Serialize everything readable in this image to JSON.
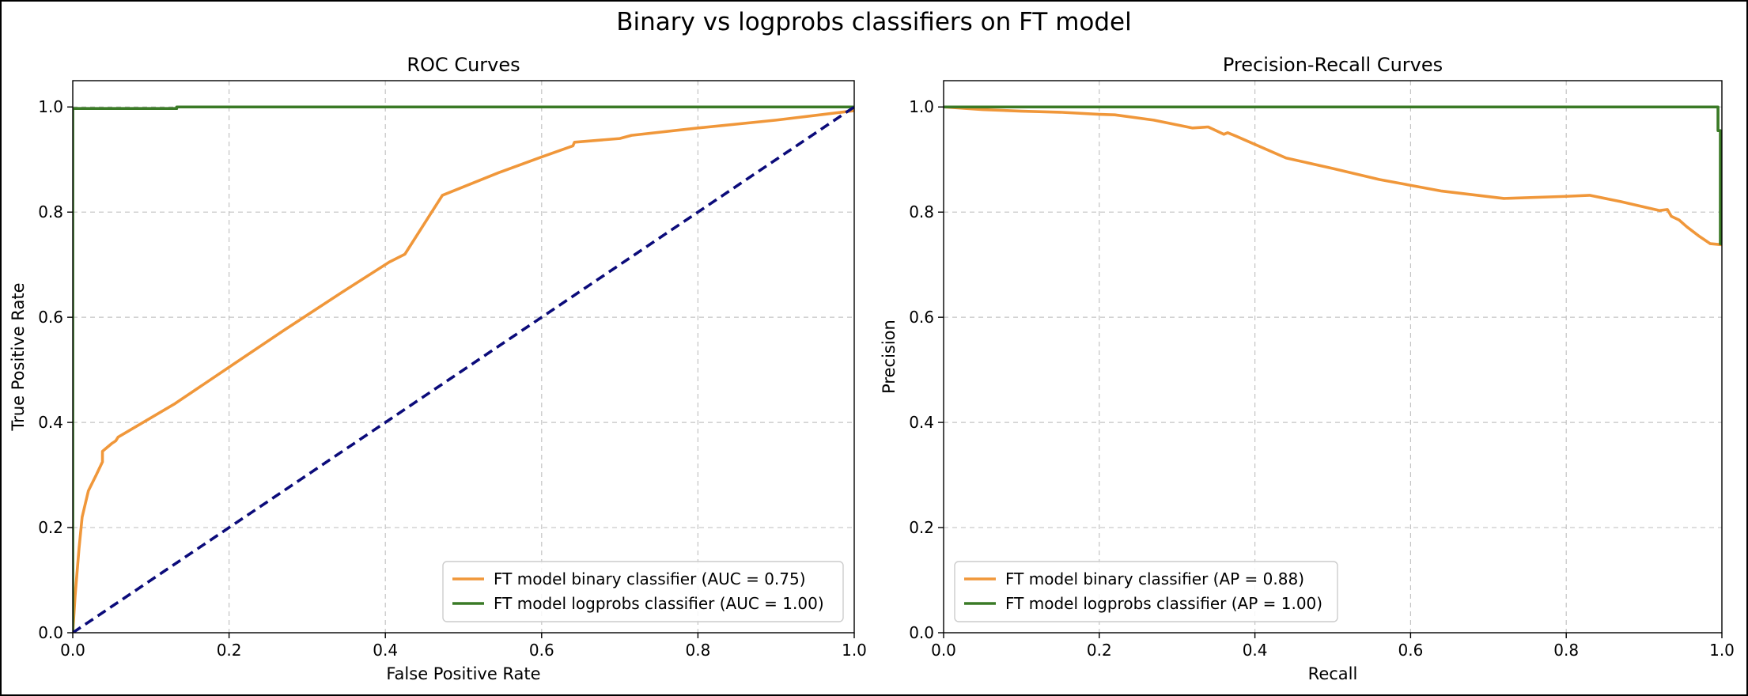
{
  "figure": {
    "title": "Binary vs logprobs classifiers on FT model"
  },
  "chart_data": [
    {
      "type": "line",
      "title": "ROC Curves",
      "xlabel": "False Positive Rate",
      "ylabel": "True Positive Rate",
      "xlim": [
        0.0,
        1.0
      ],
      "ylim": [
        0.0,
        1.05
      ],
      "xticks": [
        "0.0",
        "0.2",
        "0.4",
        "0.6",
        "0.8",
        "1.0"
      ],
      "yticks": [
        "0.0",
        "0.2",
        "0.4",
        "0.6",
        "0.8",
        "1.0"
      ],
      "grid": true,
      "legend_position": "lower-right",
      "series": [
        {
          "name": "FT model binary classifier (AUC = 0.75)",
          "color": "#f0973a",
          "style": "solid",
          "x": [
            0.0,
            0.003,
            0.008,
            0.012,
            0.02,
            0.03,
            0.038,
            0.038,
            0.05,
            0.055,
            0.058,
            0.13,
            0.2,
            0.27,
            0.345,
            0.405,
            0.425,
            0.473,
            0.545,
            0.6,
            0.64,
            0.642,
            0.7,
            0.715,
            0.8,
            0.9,
            1.0
          ],
          "y": [
            0.0,
            0.07,
            0.16,
            0.22,
            0.27,
            0.3,
            0.325,
            0.345,
            0.36,
            0.365,
            0.372,
            0.435,
            0.505,
            0.575,
            0.648,
            0.705,
            0.72,
            0.832,
            0.875,
            0.905,
            0.926,
            0.933,
            0.94,
            0.946,
            0.96,
            0.975,
            0.993
          ]
        },
        {
          "name": "FT model logprobs classifier (AUC = 1.00)",
          "color": "#3a7a26",
          "style": "solid",
          "x": [
            0.0,
            0.0,
            0.133,
            0.133,
            1.0
          ],
          "y": [
            0.0,
            0.997,
            0.997,
            1.0,
            1.0
          ]
        },
        {
          "color": "#0b0b7a",
          "style": "dashed",
          "x": [
            0.0,
            1.0
          ],
          "y": [
            0.0,
            1.0
          ]
        }
      ]
    },
    {
      "type": "line",
      "title": "Precision-Recall Curves",
      "xlabel": "Recall",
      "ylabel": "Precision",
      "xlim": [
        0.0,
        1.0
      ],
      "ylim": [
        0.0,
        1.05
      ],
      "xticks": [
        "0.0",
        "0.2",
        "0.4",
        "0.6",
        "0.8",
        "1.0"
      ],
      "yticks": [
        "0.0",
        "0.2",
        "0.4",
        "0.6",
        "0.8",
        "1.0"
      ],
      "grid": true,
      "legend_position": "lower-left",
      "series": [
        {
          "name": "FT model binary classifier (AP = 0.88)",
          "color": "#f0973a",
          "style": "solid",
          "x": [
            0.0,
            0.05,
            0.1,
            0.15,
            0.2,
            0.22,
            0.27,
            0.32,
            0.34,
            0.36,
            0.365,
            0.375,
            0.44,
            0.5,
            0.56,
            0.64,
            0.72,
            0.8,
            0.83,
            0.87,
            0.92,
            0.93,
            0.935,
            0.945,
            0.955,
            0.97,
            0.985,
            1.0
          ],
          "y": [
            1.0,
            0.995,
            0.992,
            0.99,
            0.986,
            0.985,
            0.975,
            0.96,
            0.962,
            0.948,
            0.951,
            0.945,
            0.903,
            0.883,
            0.862,
            0.84,
            0.826,
            0.83,
            0.832,
            0.82,
            0.803,
            0.805,
            0.792,
            0.785,
            0.772,
            0.755,
            0.74,
            0.738
          ]
        },
        {
          "name": "FT model logprobs classifier (AP = 1.00)",
          "color": "#3a7a26",
          "style": "solid",
          "x": [
            0.0,
            0.995,
            0.995,
            0.998,
            0.998,
            1.0
          ],
          "y": [
            1.0,
            1.0,
            0.955,
            0.955,
            0.74,
            0.74
          ]
        }
      ]
    }
  ]
}
